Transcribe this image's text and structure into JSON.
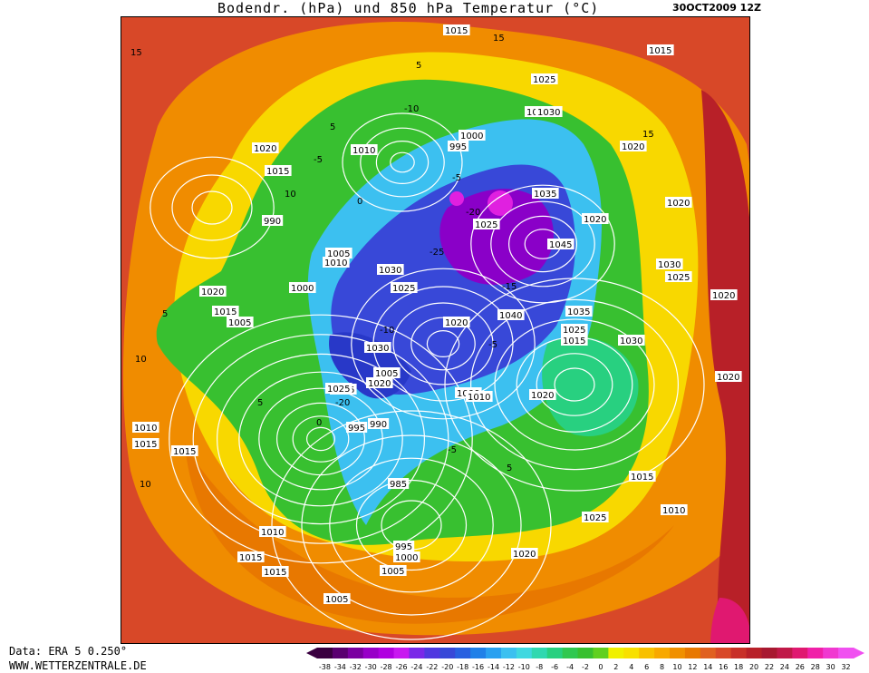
{
  "header": {
    "title": "Bodendr. (hPa) und 850 hPa Temperatur (°C)",
    "datetime": "30OCT2009 12Z"
  },
  "footer": {
    "data_source": "Data: ERA 5 0.250°",
    "website": "WWW.WETTERZENTRALE.DE"
  },
  "legend": {
    "ticks": [
      "-38",
      "-34",
      "-32",
      "-30",
      "-28",
      "-26",
      "-24",
      "-22",
      "-20",
      "-18",
      "-16",
      "-14",
      "-12",
      "-10",
      "-8",
      "-6",
      "-4",
      "-2",
      "0",
      "2",
      "4",
      "6",
      "8",
      "10",
      "12",
      "14",
      "16",
      "18",
      "20",
      "22",
      "24",
      "26",
      "28",
      "30",
      "32"
    ],
    "colors": [
      "#3a0040",
      "#5a0070",
      "#7a00a0",
      "#9800c8",
      "#b000e0",
      "#c818f0",
      "#7a28e8",
      "#5038e0",
      "#3848d8",
      "#2860e0",
      "#2080e8",
      "#2aa0f0",
      "#3cc0f0",
      "#40d8e0",
      "#30d8b0",
      "#28d080",
      "#30c850",
      "#38c030",
      "#60d020",
      "#f0f000",
      "#f8e000",
      "#f8c000",
      "#f8a800",
      "#f09000",
      "#e87800",
      "#e06020",
      "#d84828",
      "#c83028",
      "#b82028",
      "#a81830",
      "#c01848",
      "#e01870",
      "#f020a8",
      "#f038d0",
      "#f050f0"
    ]
  },
  "map": {
    "colors": {
      "warm_outer": "#d84828",
      "orange": "#f08c00",
      "yellow": "#f8d800",
      "green": "#38c030",
      "cyan": "#3cc0f0",
      "blue": "#3848d8",
      "purple": "#8a00c8",
      "magenta": "#e020e0"
    },
    "isobar_labels": [
      "1015",
      "1025",
      "1015",
      "1025",
      "1030",
      "1020",
      "1010",
      "1015",
      "1000",
      "995",
      "1020",
      "1025",
      "990",
      "1005",
      "1030",
      "1035",
      "1045",
      "1020",
      "1030",
      "1025",
      "1020",
      "1020",
      "1015",
      "1005",
      "1000",
      "1025",
      "1010",
      "1020",
      "1035",
      "1040",
      "1025",
      "1015",
      "1030",
      "1005",
      "1020",
      "1015",
      "1025",
      "1000",
      "990",
      "995",
      "1010",
      "1020",
      "1010",
      "1015",
      "1030",
      "985",
      "1015",
      "1010",
      "1015",
      "1025",
      "995",
      "1000",
      "1005",
      "1020",
      "1020",
      "1015",
      "1010",
      "1005",
      "1020",
      "1015",
      "1010"
    ],
    "temp_labels": [
      "15",
      "15",
      "5",
      "10",
      "-5",
      "5",
      "10",
      "-10",
      "15",
      "5",
      "0",
      "-5",
      "-20",
      "-25",
      "-15",
      "-5",
      "-20",
      "-10",
      "0",
      "10",
      "5",
      "-5",
      "5"
    ]
  }
}
